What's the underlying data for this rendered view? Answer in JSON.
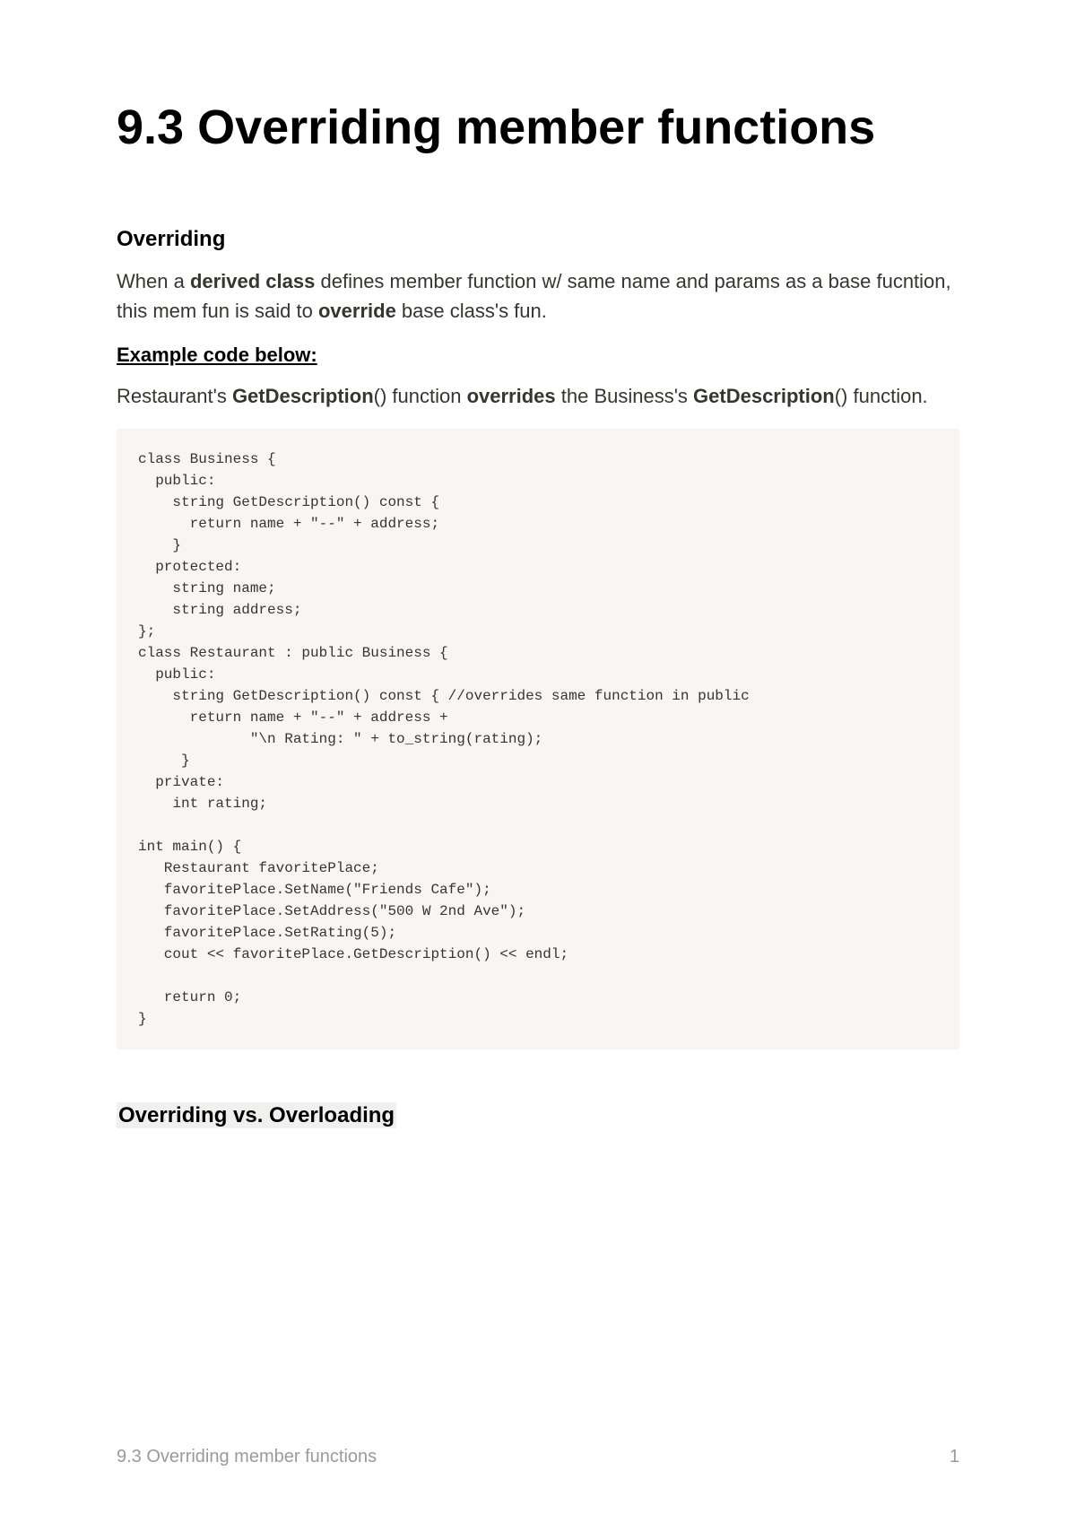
{
  "title": "9.3 Overriding member functions",
  "section1": {
    "heading": "Overriding",
    "paragraph_parts": {
      "p1": "When a ",
      "b1": "derived class",
      "p2": " defines member function w/ same name and params as a base fucntion, this mem fun is said to ",
      "b2": "override",
      "p3": " base class's fun."
    }
  },
  "subsection": {
    "heading": "Example code below:",
    "paragraph_parts": {
      "p1": "Restaurant's ",
      "b1": "GetDescription",
      "p2": "() function ",
      "b2": "overrides",
      "p3": " the Business's ",
      "b3": "GetDescription",
      "p4": "() function."
    }
  },
  "code": "class Business {\n  public:\n    string GetDescription() const {\n      return name + \"--\" + address;\n    }\n  protected:\n    string name;\n    string address;\n};\nclass Restaurant : public Business {\n  public:\n    string GetDescription() const { //overrides same function in public\n      return name + \"--\" + address +\n             \"\\n Rating: \" + to_string(rating);\n     }\n  private:\n    int rating;\n\nint main() {\n   Restaurant favoritePlace;\n   favoritePlace.SetName(\"Friends Cafe\");\n   favoritePlace.SetAddress(\"500 W 2nd Ave\");\n   favoritePlace.SetRating(5);\n   cout << favoritePlace.GetDescription() << endl;\n\n   return 0;\n}",
  "section2": {
    "heading": "Overriding vs. Overloading"
  },
  "footer": {
    "title": "9.3 Overriding member functions",
    "page": "1"
  },
  "colors": {
    "text": "#37352f",
    "heading": "#000000",
    "code_bg": "#f7f6f3",
    "footer_text": "#9b9a97",
    "background": "#ffffff"
  },
  "fonts": {
    "body_size": 22,
    "title_size": 54,
    "heading_size": 24,
    "code_size": 16,
    "footer_size": 20
  }
}
